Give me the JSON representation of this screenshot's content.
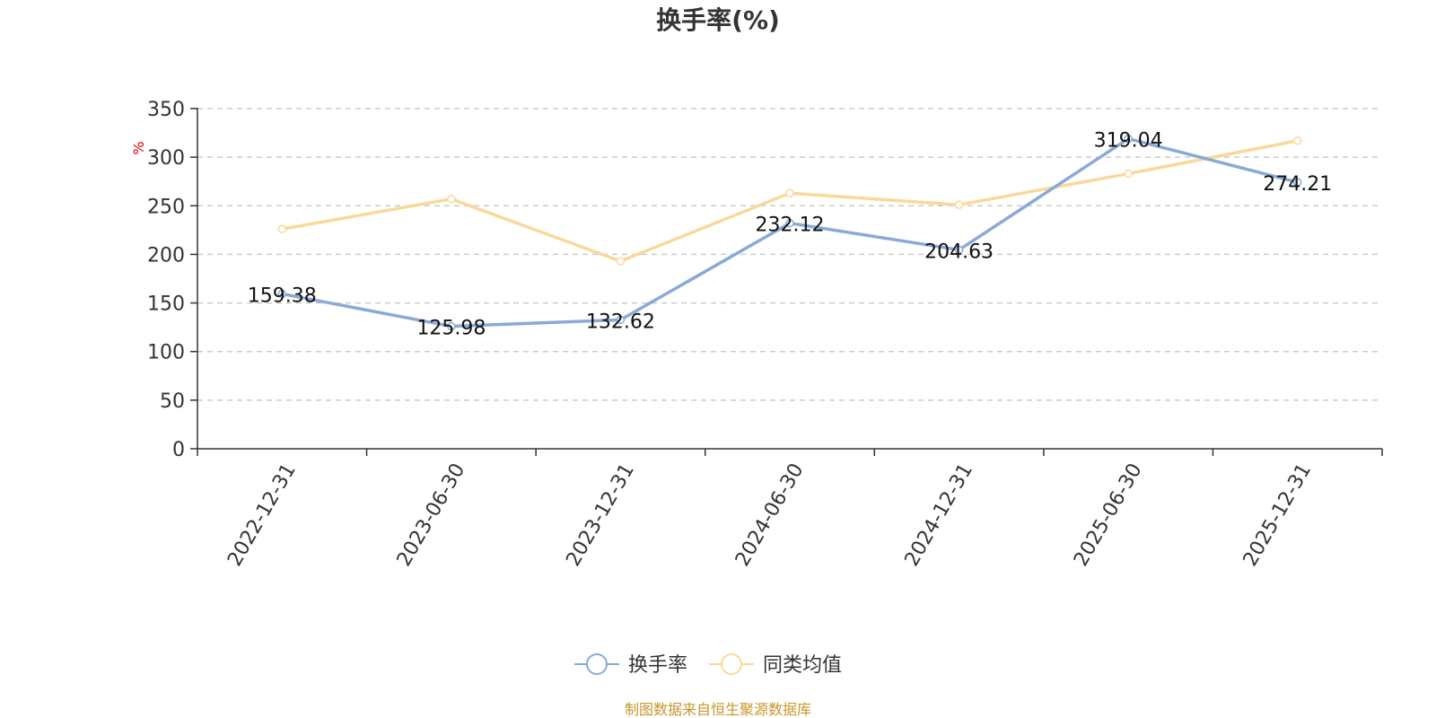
{
  "chart_data": {
    "type": "line",
    "title": "换手率(%)",
    "ylabel": "%",
    "xlabel": "",
    "ylim": [
      0,
      350
    ],
    "yticks": [
      0,
      50,
      100,
      150,
      200,
      250,
      300,
      350
    ],
    "categories": [
      "2022-12-31",
      "2023-06-30",
      "2023-12-31",
      "2024-06-30",
      "2024-12-31",
      "2025-06-30",
      "2025-12-31"
    ],
    "grid": true,
    "legend_position": "bottom-center",
    "series": [
      {
        "name": "换手率",
        "color": "#8aaad6",
        "values": [
          159.38,
          125.98,
          132.62,
          232.12,
          204.63,
          319.04,
          274.21
        ],
        "labels": [
          "159.38",
          "125.98",
          "132.62",
          "232.12",
          "204.63",
          "319.04",
          "274.21"
        ],
        "show_labels": true
      },
      {
        "name": "同类均值",
        "color": "#f9d99b",
        "values": [
          226,
          257,
          193,
          263,
          251,
          283,
          317
        ],
        "show_labels": false
      }
    ],
    "source": "制图数据来自恒生聚源数据库"
  }
}
